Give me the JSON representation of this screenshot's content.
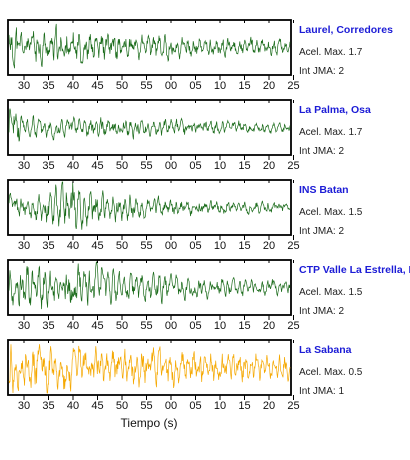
{
  "chart_data": {
    "type": "line",
    "xlabel": "Tiempo (s)",
    "x_tick_labels": [
      "30",
      "35",
      "40",
      "45",
      "50",
      "55",
      "00",
      "05",
      "10",
      "15",
      "20",
      "25"
    ],
    "accel_prefix": "Acel. Max.",
    "int_prefix": "Int JMA:",
    "series": [
      {
        "name": "Laurel, Corredores",
        "accel_max": "1.7",
        "int_jma": "2",
        "color": "#1a6b1a",
        "envelope": [
          0.95,
          0.45,
          0.5,
          0.55,
          0.55,
          0.5,
          0.45,
          0.45,
          0.42,
          0.38,
          0.38,
          0.35,
          0.32,
          0.3,
          0.3,
          0.28,
          0.27,
          0.26,
          0.25,
          0.22
        ],
        "seed": 11
      },
      {
        "name": "La Palma, Osa",
        "accel_max": "1.7",
        "int_jma": "2",
        "color": "#1a6b1a",
        "envelope": [
          0.95,
          0.35,
          0.32,
          0.3,
          0.32,
          0.3,
          0.3,
          0.28,
          0.3,
          0.28,
          0.26,
          0.26,
          0.24,
          0.22,
          0.2,
          0.2,
          0.18,
          0.17,
          0.16,
          0.15
        ],
        "seed": 23
      },
      {
        "name": "INS Batan",
        "accel_max": "1.5",
        "int_jma": "2",
        "color": "#1a6b1a",
        "envelope": [
          0.35,
          0.3,
          0.45,
          0.6,
          0.95,
          0.55,
          0.5,
          0.42,
          0.38,
          0.35,
          0.3,
          0.28,
          0.25,
          0.22,
          0.2,
          0.2,
          0.18,
          0.17,
          0.16,
          0.15
        ],
        "seed": 37
      },
      {
        "name": "CTP Valle La Estrella, L",
        "accel_max": "1.5",
        "int_jma": "2",
        "color": "#1a6b1a",
        "envelope": [
          0.5,
          0.6,
          0.65,
          0.6,
          0.75,
          0.55,
          0.7,
          0.5,
          0.45,
          0.45,
          0.4,
          0.35,
          0.32,
          0.3,
          0.28,
          0.27,
          0.25,
          0.24,
          0.22,
          0.2
        ],
        "seed": 53
      },
      {
        "name": "La Sabana",
        "accel_max": "0.5",
        "int_jma": "1",
        "color": "#f5a800",
        "envelope": [
          0.85,
          0.8,
          0.7,
          0.75,
          0.7,
          0.7,
          0.65,
          0.65,
          0.6,
          0.6,
          0.55,
          0.55,
          0.5,
          0.5,
          0.45,
          0.45,
          0.45,
          0.4,
          0.4,
          0.4
        ],
        "seed": 71
      }
    ]
  }
}
